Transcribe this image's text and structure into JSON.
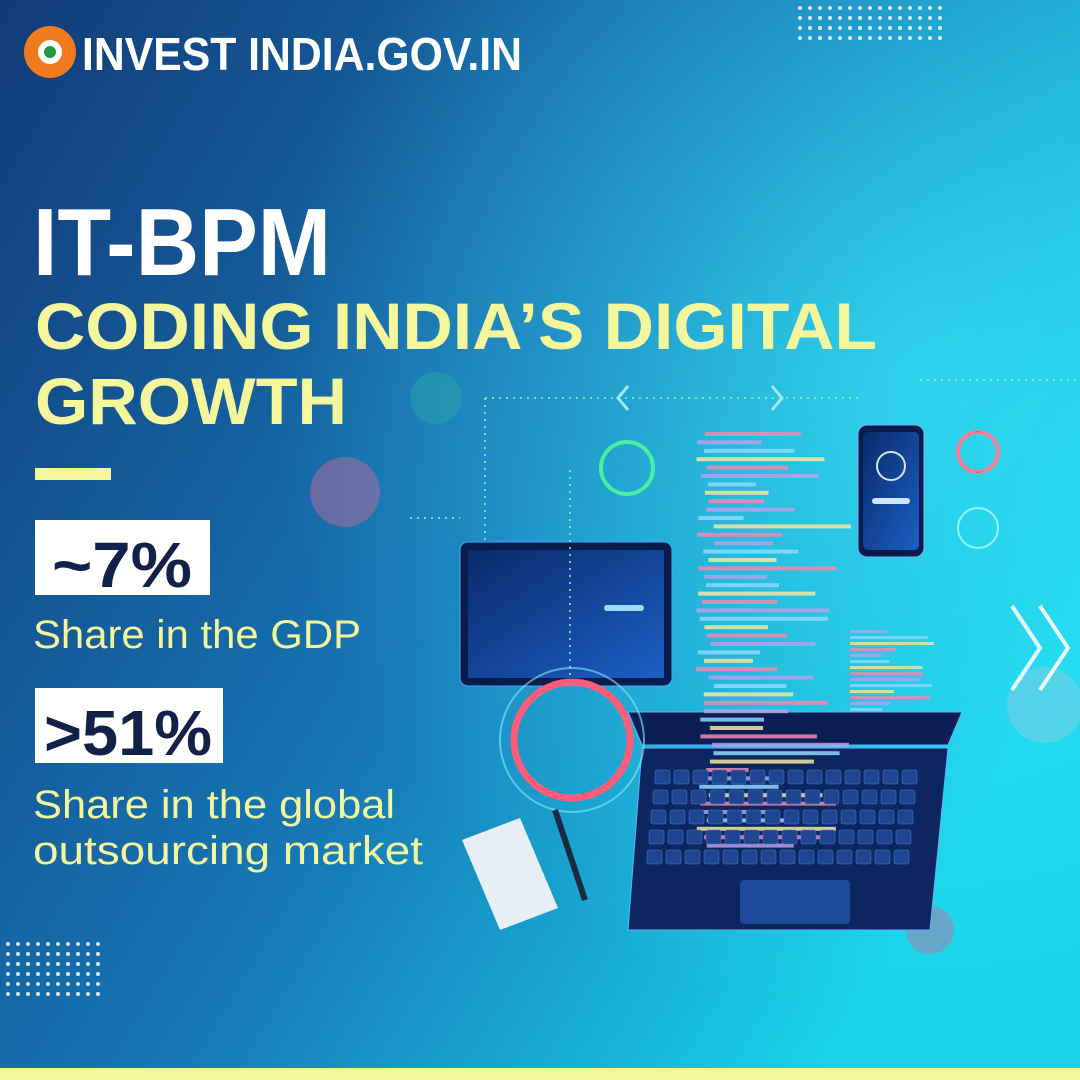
{
  "header": {
    "brand": "INVEST INDIA.GOV.IN"
  },
  "title": "IT-BPM",
  "subtitle_lines": [
    "CODING INDIA’S DIGITAL",
    "GROWTH"
  ],
  "stats": [
    {
      "value": "~7%",
      "label_lines": [
        "Share in the GDP"
      ]
    },
    {
      "value": ">51%",
      "label_lines": [
        "Share in the global",
        "outsourcing market"
      ]
    }
  ]
}
